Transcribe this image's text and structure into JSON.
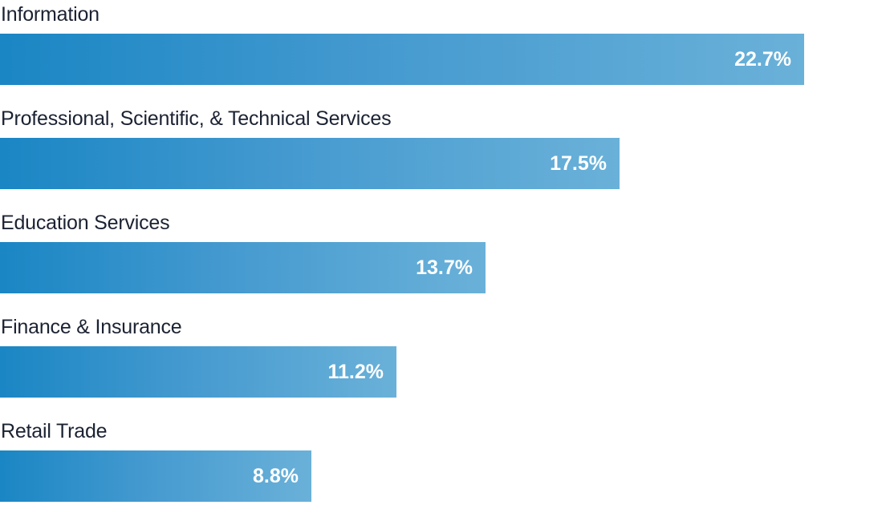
{
  "chart_data": {
    "type": "bar",
    "orientation": "horizontal",
    "categories": [
      "Information",
      "Professional, Scientific, & Technical Services",
      "Education Services",
      "Finance & Insurance",
      "Retail Trade"
    ],
    "values": [
      22.7,
      17.5,
      13.7,
      11.2,
      8.8
    ],
    "value_labels": [
      "22.7%",
      "17.5%",
      "13.7%",
      "11.2%",
      "8.8%"
    ],
    "unit": "%",
    "grid": false,
    "legend": "none",
    "colors": {
      "bar_start": "#1a86c4",
      "bar_end": "#6ab1d9",
      "label_text": "#1b2232",
      "value_text": "#ffffff"
    }
  }
}
